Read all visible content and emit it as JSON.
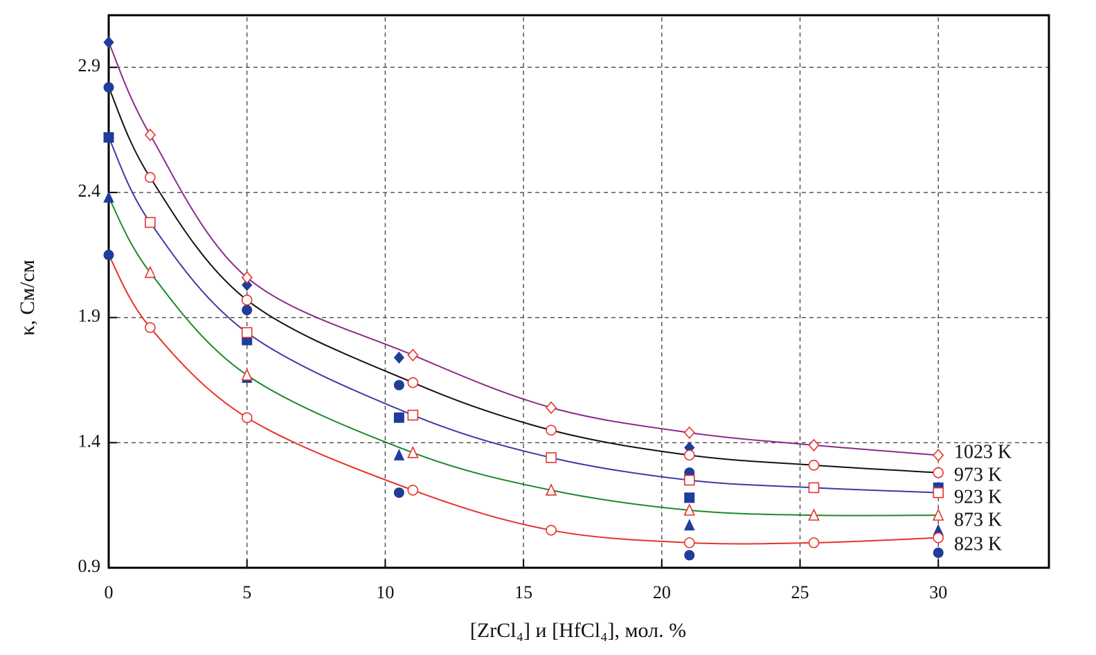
{
  "chart_data": {
    "type": "line",
    "x_label": "[ZrCl₄] и [HfCl₄], мол. %",
    "y_label": "κ, См/см",
    "xlim": [
      0,
      34
    ],
    "xticks": [
      0,
      5,
      10,
      15,
      20,
      25,
      30
    ],
    "ylim": [
      0.9,
      3.1
    ],
    "yticks": [
      0.9,
      1.4,
      1.9,
      2.4,
      2.9
    ],
    "grid": true,
    "marker_edge_color": "#e8312a",
    "measured_color": "#1f3d99",
    "series": [
      {
        "name": "1023 K",
        "color": "#8b2b8b",
        "marker": "diamond",
        "x": [
          1.5,
          5,
          11,
          16,
          21,
          25.5,
          30
        ],
        "values": [
          2.63,
          2.06,
          1.75,
          1.54,
          1.44,
          1.39,
          1.35
        ],
        "measured": {
          "x": [
            0,
            5,
            10.5,
            21
          ],
          "values": [
            3.0,
            2.03,
            1.74,
            1.38
          ]
        }
      },
      {
        "name": "973 K",
        "color": "#111111",
        "marker": "circle",
        "x": [
          1.5,
          5,
          11,
          16,
          21,
          25.5,
          30
        ],
        "values": [
          2.46,
          1.97,
          1.64,
          1.45,
          1.35,
          1.31,
          1.28
        ],
        "measured": {
          "x": [
            0,
            5,
            10.5,
            21,
            30
          ],
          "values": [
            2.82,
            1.93,
            1.63,
            1.28,
            1.28
          ]
        }
      },
      {
        "name": "923 K",
        "color": "#3a3aa8",
        "marker": "square",
        "x": [
          1.5,
          5,
          11,
          16,
          21,
          25.5,
          30
        ],
        "values": [
          2.28,
          1.84,
          1.51,
          1.34,
          1.25,
          1.22,
          1.2
        ],
        "measured": {
          "x": [
            0,
            5,
            10.5,
            21,
            30
          ],
          "values": [
            2.62,
            1.81,
            1.5,
            1.18,
            1.22
          ]
        }
      },
      {
        "name": "873 K",
        "color": "#1a8a2a",
        "marker": "triangle",
        "x": [
          1.5,
          5,
          11,
          16,
          21,
          25.5,
          30
        ],
        "values": [
          2.08,
          1.67,
          1.36,
          1.21,
          1.13,
          1.11,
          1.11
        ],
        "measured": {
          "x": [
            0,
            5,
            10.5,
            21,
            30
          ],
          "values": [
            2.38,
            1.66,
            1.35,
            1.07,
            1.05
          ]
        }
      },
      {
        "name": "823 K",
        "color": "#e8312a",
        "marker": "circle",
        "x": [
          1.5,
          5,
          11,
          16,
          21,
          25.5,
          30
        ],
        "values": [
          1.86,
          1.5,
          1.21,
          1.05,
          1.0,
          1.0,
          1.02
        ],
        "measured": {
          "x": [
            0,
            5,
            10.5,
            21,
            30
          ],
          "values": [
            2.15,
            1.5,
            1.2,
            0.95,
            0.96
          ]
        }
      }
    ]
  }
}
